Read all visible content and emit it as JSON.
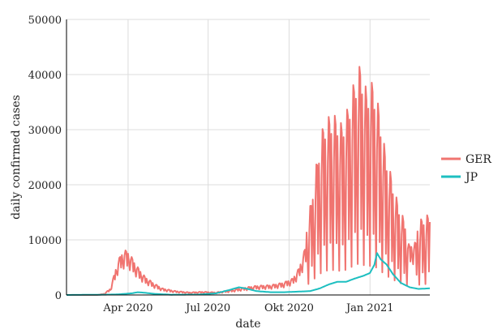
{
  "chart_data": {
    "type": "line",
    "xlabel": "date",
    "ylabel": "daily confirmed cases",
    "ylim": [
      0,
      50000
    ],
    "xlim": [
      "2020-01-22",
      "2021-03-10"
    ],
    "y_ticks": [
      0,
      10000,
      20000,
      30000,
      40000,
      50000
    ],
    "y_tick_labels": [
      "0",
      "10000",
      "20000",
      "30000",
      "40000",
      "50000"
    ],
    "x_ticks": [
      "2020-04-01",
      "2020-07-01",
      "2020-10-01",
      "2021-01-01"
    ],
    "x_tick_labels": [
      "Apr 2020",
      "Jul 2020",
      "Okt 2020",
      "Jan 2021"
    ],
    "grid": true,
    "legend": {
      "position": "right",
      "entries": [
        "GER",
        "JP"
      ]
    },
    "series": [
      {
        "name": "GER",
        "color": "#F07470",
        "oscillating": true,
        "points": [
          [
            "2020-01-22",
            0
          ],
          [
            "2020-02-26",
            0
          ],
          [
            "2020-03-05",
            200
          ],
          [
            "2020-03-12",
            1000
          ],
          [
            "2020-03-16",
            3000
          ],
          [
            "2020-03-20",
            5000
          ],
          [
            "2020-03-24",
            6200
          ],
          [
            "2020-03-28",
            6800
          ],
          [
            "2020-04-02",
            6500
          ],
          [
            "2020-04-06",
            5500
          ],
          [
            "2020-04-12",
            4200
          ],
          [
            "2020-04-20",
            2800
          ],
          [
            "2020-04-30",
            1800
          ],
          [
            "2020-05-10",
            1000
          ],
          [
            "2020-05-25",
            600
          ],
          [
            "2020-06-10",
            400
          ],
          [
            "2020-06-25",
            500
          ],
          [
            "2020-07-10",
            400
          ],
          [
            "2020-07-25",
            700
          ],
          [
            "2020-08-10",
            1100
          ],
          [
            "2020-08-25",
            1400
          ],
          [
            "2020-09-10",
            1500
          ],
          [
            "2020-09-25",
            1900
          ],
          [
            "2020-10-05",
            2500
          ],
          [
            "2020-10-12",
            4000
          ],
          [
            "2020-10-19",
            7000
          ],
          [
            "2020-10-26",
            11000
          ],
          [
            "2020-11-02",
            16000
          ],
          [
            "2020-11-09",
            20000
          ],
          [
            "2020-11-16",
            21000
          ],
          [
            "2020-11-23",
            21000
          ],
          [
            "2020-11-30",
            20000
          ],
          [
            "2020-12-07",
            22000
          ],
          [
            "2020-12-14",
            25000
          ],
          [
            "2020-12-21",
            27000
          ],
          [
            "2020-12-28",
            24000
          ],
          [
            "2021-01-04",
            25000
          ],
          [
            "2021-01-11",
            22000
          ],
          [
            "2021-01-18",
            17000
          ],
          [
            "2021-01-25",
            14000
          ],
          [
            "2021-02-01",
            11000
          ],
          [
            "2021-02-08",
            9000
          ],
          [
            "2021-02-15",
            7500
          ],
          [
            "2021-02-22",
            8000
          ],
          [
            "2021-03-01",
            9000
          ],
          [
            "2021-03-10",
            9500
          ]
        ]
      },
      {
        "name": "JP",
        "color": "#1DBFC0",
        "oscillating": false,
        "points": [
          [
            "2020-01-22",
            0
          ],
          [
            "2020-03-01",
            50
          ],
          [
            "2020-03-20",
            100
          ],
          [
            "2020-04-05",
            300
          ],
          [
            "2020-04-12",
            500
          ],
          [
            "2020-04-20",
            400
          ],
          [
            "2020-05-01",
            200
          ],
          [
            "2020-05-20",
            50
          ],
          [
            "2020-06-20",
            80
          ],
          [
            "2020-07-10",
            300
          ],
          [
            "2020-07-25",
            900
          ],
          [
            "2020-08-05",
            1400
          ],
          [
            "2020-08-15",
            1100
          ],
          [
            "2020-08-25",
            700
          ],
          [
            "2020-09-10",
            500
          ],
          [
            "2020-09-25",
            500
          ],
          [
            "2020-10-10",
            600
          ],
          [
            "2020-10-25",
            700
          ],
          [
            "2020-11-05",
            1200
          ],
          [
            "2020-11-15",
            1900
          ],
          [
            "2020-11-25",
            2400
          ],
          [
            "2020-12-05",
            2400
          ],
          [
            "2020-12-15",
            3000
          ],
          [
            "2020-12-25",
            3500
          ],
          [
            "2021-01-01",
            4000
          ],
          [
            "2021-01-06",
            5500
          ],
          [
            "2021-01-09",
            7600
          ],
          [
            "2021-01-13",
            6500
          ],
          [
            "2021-01-20",
            5500
          ],
          [
            "2021-01-27",
            3800
          ],
          [
            "2021-02-05",
            2200
          ],
          [
            "2021-02-15",
            1400
          ],
          [
            "2021-02-25",
            1100
          ],
          [
            "2021-03-10",
            1200
          ]
        ]
      }
    ]
  }
}
